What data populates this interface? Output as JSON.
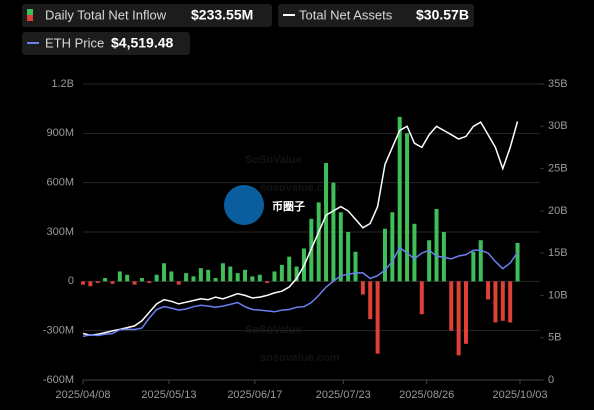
{
  "chart_data": {
    "type": "bar-line",
    "x": [
      "2025/04/08",
      "2025/04/11",
      "2025/04/14",
      "2025/04/17",
      "2025/04/20",
      "2025/04/23",
      "2025/04/26",
      "2025/04/29",
      "2025/05/02",
      "2025/05/05",
      "2025/05/08",
      "2025/05/11",
      "2025/05/14",
      "2025/05/17",
      "2025/05/20",
      "2025/05/23",
      "2025/05/26",
      "2025/05/29",
      "2025/06/01",
      "2025/06/04",
      "2025/06/07",
      "2025/06/10",
      "2025/06/13",
      "2025/06/16",
      "2025/06/19",
      "2025/06/22",
      "2025/06/25",
      "2025/06/28",
      "2025/07/01",
      "2025/07/04",
      "2025/07/07",
      "2025/07/10",
      "2025/07/13",
      "2025/07/16",
      "2025/07/19",
      "2025/07/22",
      "2025/07/25",
      "2025/07/28",
      "2025/07/31",
      "2025/08/03",
      "2025/08/06",
      "2025/08/09",
      "2025/08/12",
      "2025/08/15",
      "2025/08/18",
      "2025/08/21",
      "2025/08/24",
      "2025/08/27",
      "2025/08/30",
      "2025/09/02",
      "2025/09/05",
      "2025/09/08",
      "2025/09/11",
      "2025/09/14",
      "2025/09/17",
      "2025/09/20",
      "2025/09/23",
      "2025/09/26",
      "2025/09/29",
      "2025/10/02"
    ],
    "xticks": [
      "2025/04/08",
      "2025/05/13",
      "2025/06/17",
      "2025/07/23",
      "2025/08/26",
      "2025/10/03"
    ],
    "series": [
      {
        "name": "Daily Total Net Inflow",
        "latest": "$233.55M",
        "kind": "bar",
        "axis": "y",
        "color": "#3fbf5a",
        "negative_color": "#e0403a",
        "values": [
          -20,
          -30,
          -10,
          20,
          -15,
          60,
          40,
          -20,
          20,
          -10,
          40,
          110,
          60,
          -20,
          50,
          30,
          80,
          70,
          20,
          110,
          90,
          50,
          70,
          30,
          40,
          -10,
          60,
          100,
          150,
          90,
          200,
          380,
          480,
          720,
          600,
          420,
          300,
          180,
          -80,
          -230,
          -440,
          320,
          420,
          1000,
          900,
          350,
          -200,
          250,
          440,
          300,
          -300,
          -450,
          -380,
          180,
          250,
          -110,
          -250,
          -240,
          -250,
          233.55
        ]
      },
      {
        "name": "Total Net Assets",
        "latest": "$30.57B",
        "kind": "line",
        "axis": "y2",
        "color": "#ffffff",
        "values": [
          5.5,
          5.3,
          5.4,
          5.6,
          5.8,
          6.0,
          6.2,
          6.4,
          7.0,
          8.0,
          9.0,
          9.5,
          9.3,
          9.0,
          9.2,
          9.4,
          9.6,
          9.5,
          9.8,
          9.6,
          9.9,
          10.2,
          10.0,
          9.7,
          9.8,
          10.0,
          10.3,
          10.5,
          11.0,
          12.0,
          13.5,
          15.5,
          17.5,
          19.5,
          20.0,
          20.5,
          20.0,
          19.0,
          18.0,
          18.5,
          20.5,
          25.5,
          27.5,
          29.5,
          30.0,
          28.0,
          27.5,
          29.0,
          30.0,
          29.5,
          29.0,
          28.5,
          28.8,
          30.0,
          30.5,
          29.0,
          27.5,
          25.0,
          27.5,
          30.57
        ]
      },
      {
        "name": "ETH Price",
        "latest": "$4,519.48",
        "kind": "line",
        "axis": "y3",
        "color": "#6b7ff0",
        "values": [
          1550,
          1600,
          1580,
          1620,
          1650,
          1780,
          1800,
          1790,
          1840,
          2200,
          2500,
          2600,
          2550,
          2480,
          2520,
          2600,
          2650,
          2620,
          2580,
          2620,
          2680,
          2750,
          2600,
          2500,
          2480,
          2450,
          2420,
          2480,
          2500,
          2580,
          2600,
          2750,
          3000,
          3300,
          3500,
          3700,
          3750,
          3800,
          3800,
          3600,
          3700,
          3900,
          4200,
          4700,
          4500,
          4300,
          4500,
          4600,
          4400,
          4350,
          4300,
          4400,
          4450,
          4600,
          4600,
          4500,
          4200,
          3950,
          4150,
          4519.48
        ]
      }
    ],
    "ylim": [
      -600,
      1200
    ],
    "yticks": [
      {
        "value": 1200,
        "label": "1.2B"
      },
      {
        "value": 900,
        "label": "900M"
      },
      {
        "value": 600,
        "label": "600M"
      },
      {
        "value": 300,
        "label": "300M"
      },
      0,
      {
        "value": -300,
        "label": "-300M"
      },
      {
        "value": -600,
        "label": "-600M"
      }
    ],
    "y2lim": [
      0,
      35
    ],
    "y2ticks": [
      {
        "value": 35,
        "label": "35B"
      },
      {
        "value": 30,
        "label": "30B"
      },
      {
        "value": 25,
        "label": "25B"
      },
      {
        "value": 20,
        "label": "20B"
      },
      {
        "value": 15,
        "label": "15B"
      },
      {
        "value": 10,
        "label": "10B"
      },
      {
        "value": 5,
        "label": "5B"
      },
      0
    ],
    "y3lim": [
      0,
      10500
    ],
    "grid": true,
    "watermark": "SoSoValue",
    "watermark_url": "sosovalue.com",
    "overlay_logo": "币圈子"
  }
}
